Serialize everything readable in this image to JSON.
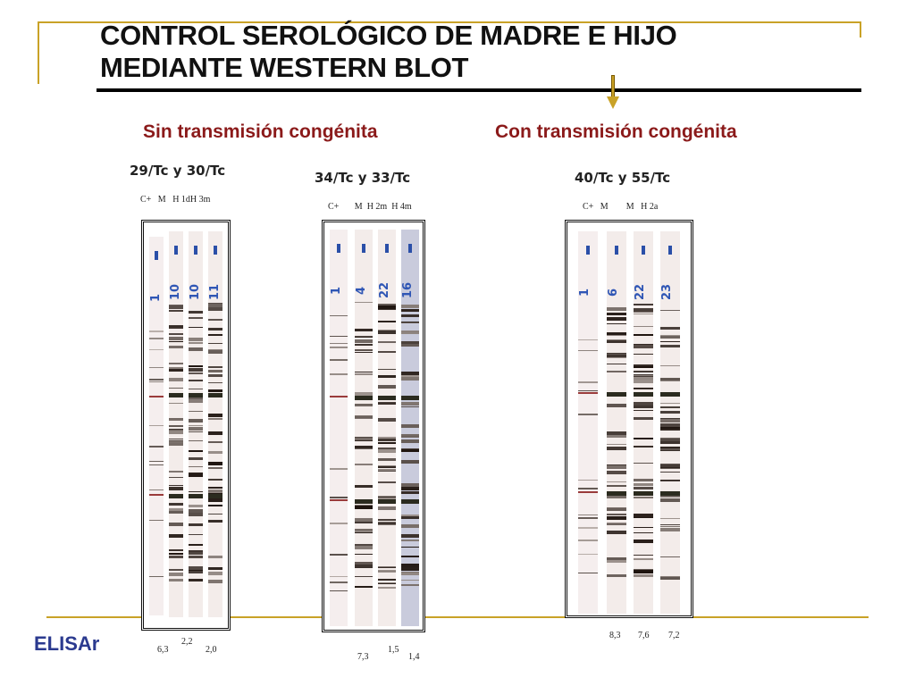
{
  "title": {
    "line1": "CONTROL SEROLÓGICO DE MADRE E HIJO",
    "line2": "MEDIANTE WESTERN BLOT"
  },
  "sections": {
    "left": "Sin transmisión congénita",
    "right": "Con transmisión congénita"
  },
  "groups": [
    {
      "title": "29/Tc y 30/Tc",
      "lane_labels": "C+   M   H 1dH 3m",
      "strip_numbers": [
        "1",
        "10",
        "10",
        "11"
      ],
      "elisa": [
        "6,3",
        "2,2",
        "2,0"
      ]
    },
    {
      "title": "34/Tc y 33/Tc",
      "lane_labels": "C+       M  H 2m  H 4m",
      "strip_numbers": [
        "1",
        "4",
        "22",
        "16"
      ],
      "elisa": [
        "7,3",
        "1,5",
        "1,4"
      ]
    },
    {
      "title": "40/Tc y 55/Tc",
      "lane_labels": "C+   M        M   H 2a",
      "strip_numbers": [
        "1",
        "6",
        "22",
        "23"
      ],
      "elisa": [
        "8,3",
        "7,6",
        "7,2"
      ]
    }
  ],
  "elisa_label": "ELISAr",
  "colors": {
    "accent_gold": "#c9a227",
    "section_title": "#8b1a1a",
    "elisa_label": "#2b3a8f",
    "strip_marker": "#2a4fa8"
  }
}
